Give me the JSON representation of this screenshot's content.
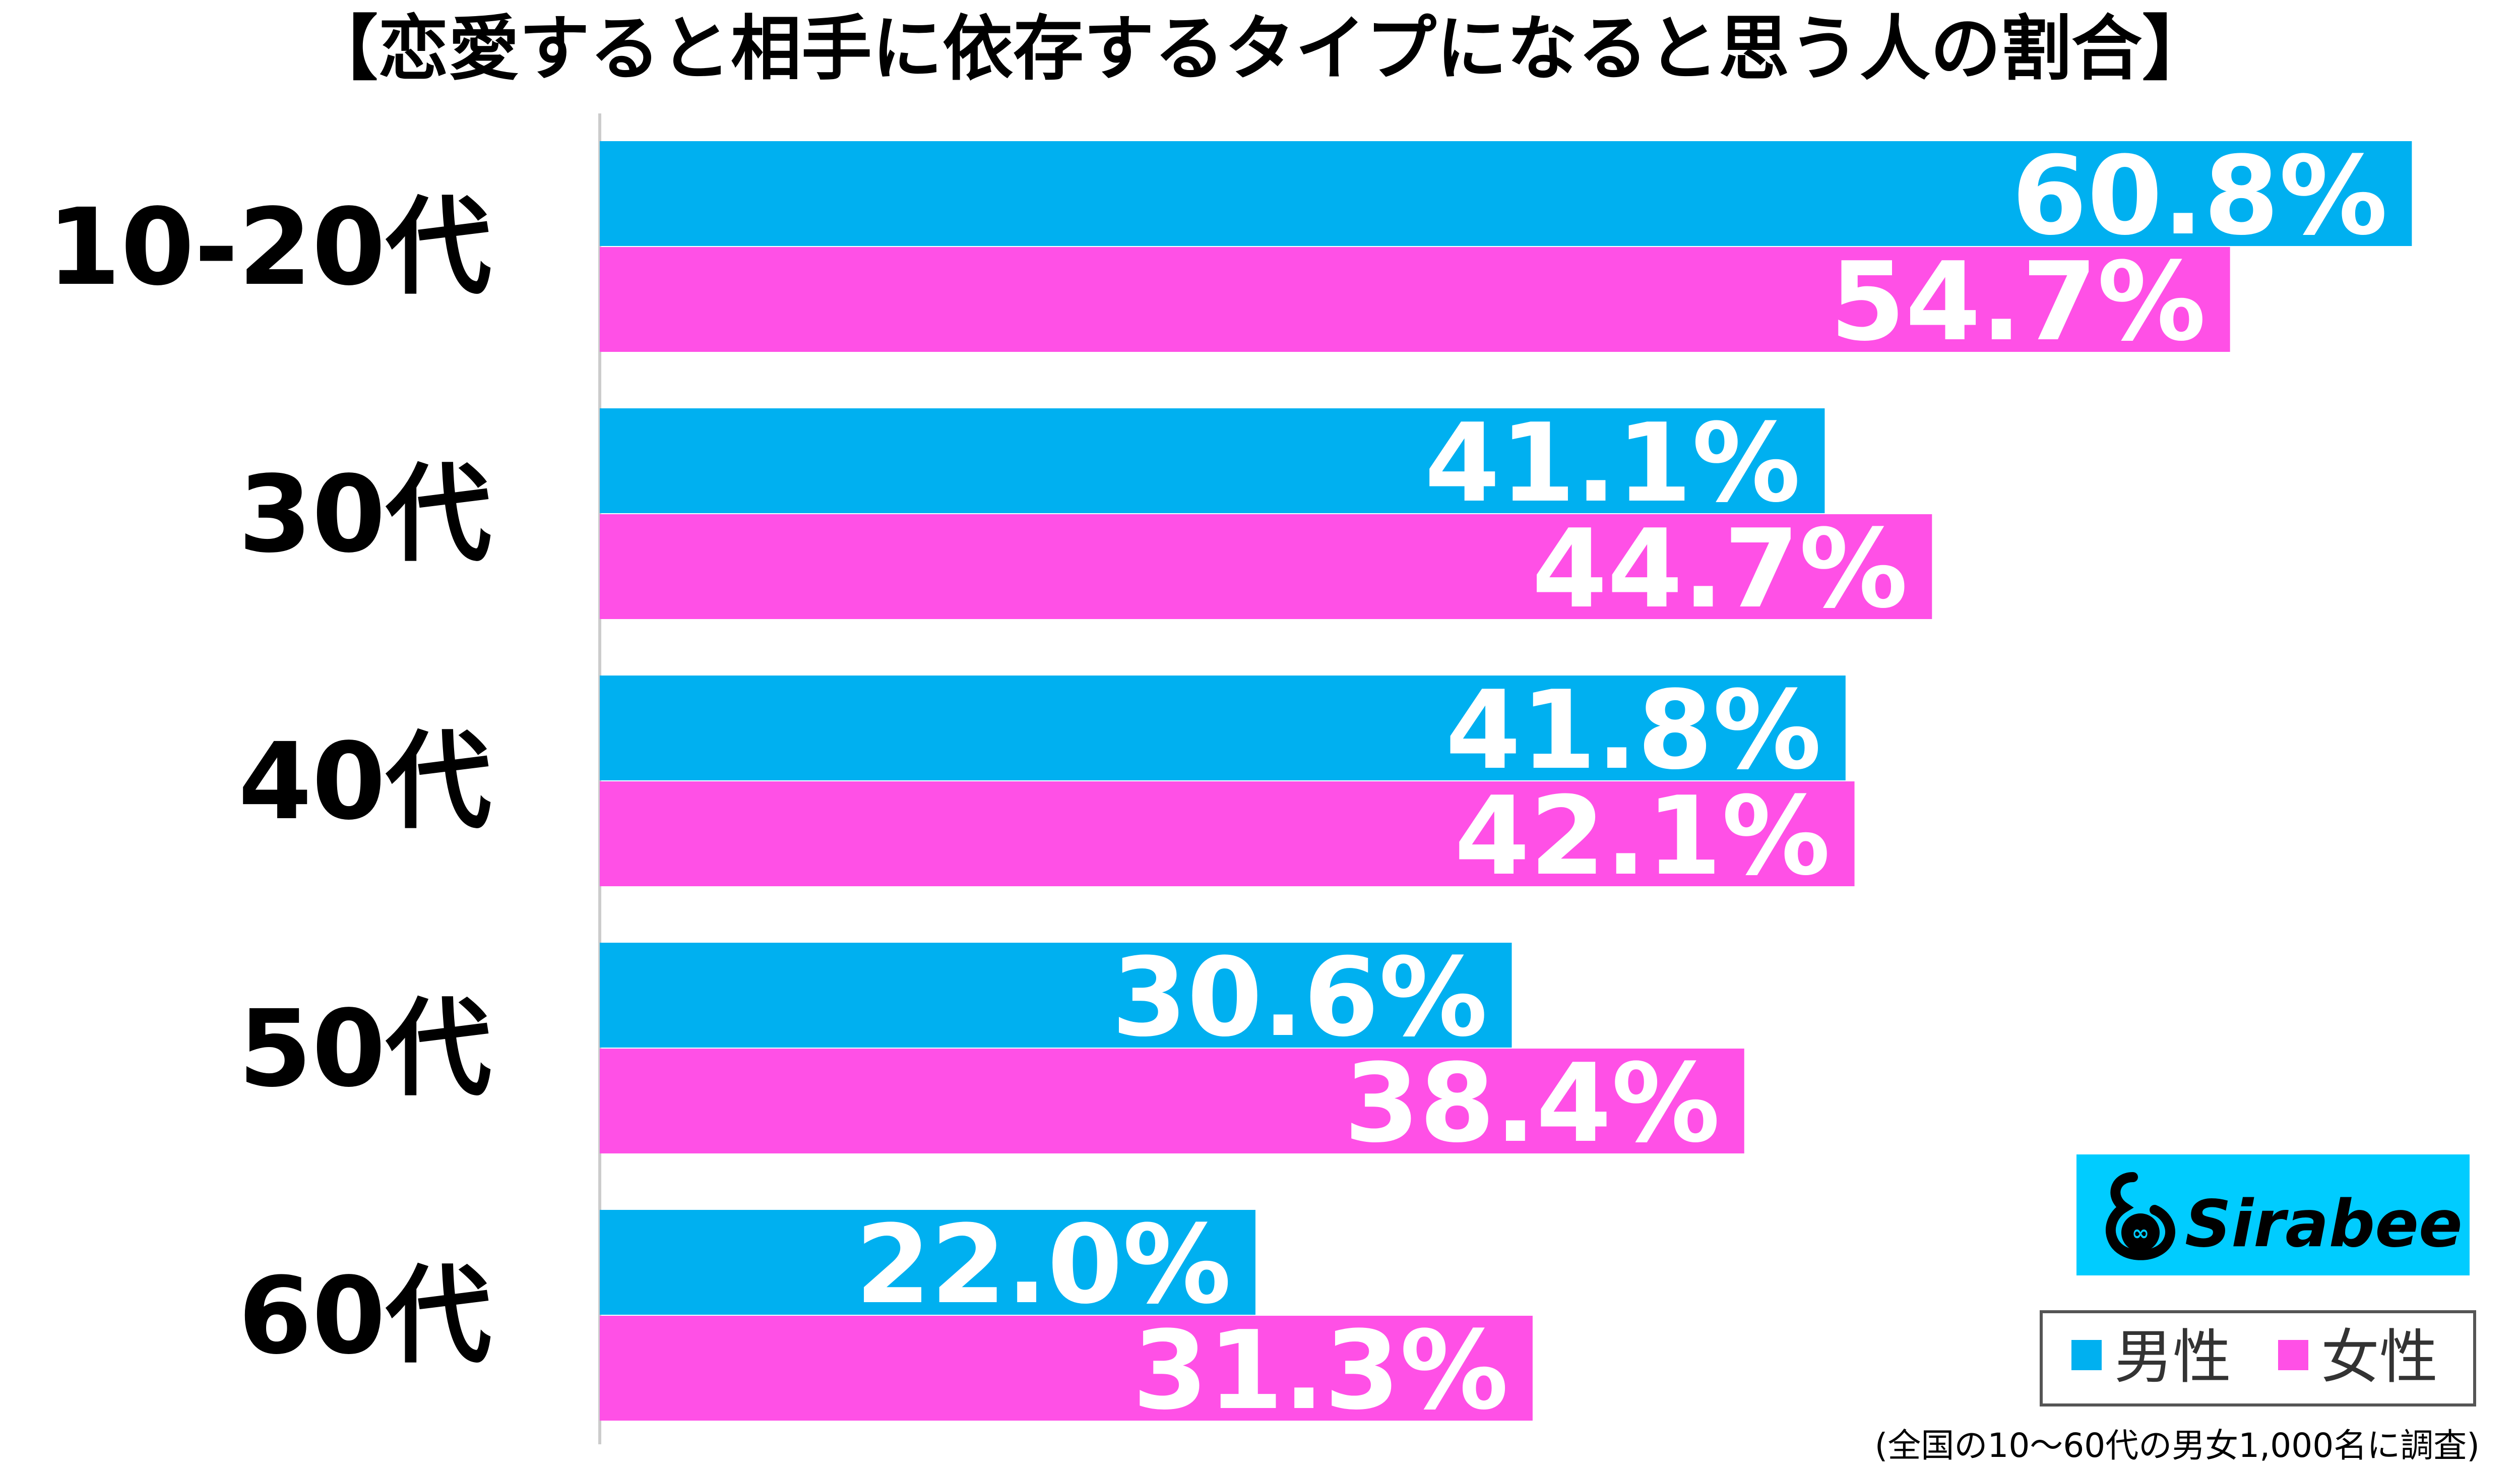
{
  "chart_data": {
    "type": "bar",
    "orientation": "horizontal",
    "title": "【恋愛すると相手に依存するタイプになると思う人の割合】",
    "categories": [
      "10-20代",
      "30代",
      "40代",
      "50代",
      "60代"
    ],
    "series": [
      {
        "name": "男性",
        "color": "#00b0f0",
        "values": [
          60.8,
          41.1,
          41.8,
          30.6,
          22.0
        ],
        "labels": [
          "60.8%",
          "41.1%",
          "41.8%",
          "30.6%",
          "22.0%"
        ]
      },
      {
        "name": "女性",
        "color": "#ff50e6",
        "values": [
          54.7,
          44.7,
          42.1,
          38.4,
          31.3
        ],
        "labels": [
          "54.7%",
          "44.7%",
          "42.1%",
          "38.4%",
          "31.3%"
        ]
      }
    ],
    "xlim": [
      0,
      62.4
    ],
    "grid": false,
    "legend": "bottom-right",
    "note": "(全国の10〜60代の男女1,000名に調査)"
  },
  "logo": {
    "text": "Sirabee",
    "color": "#00ccff"
  }
}
